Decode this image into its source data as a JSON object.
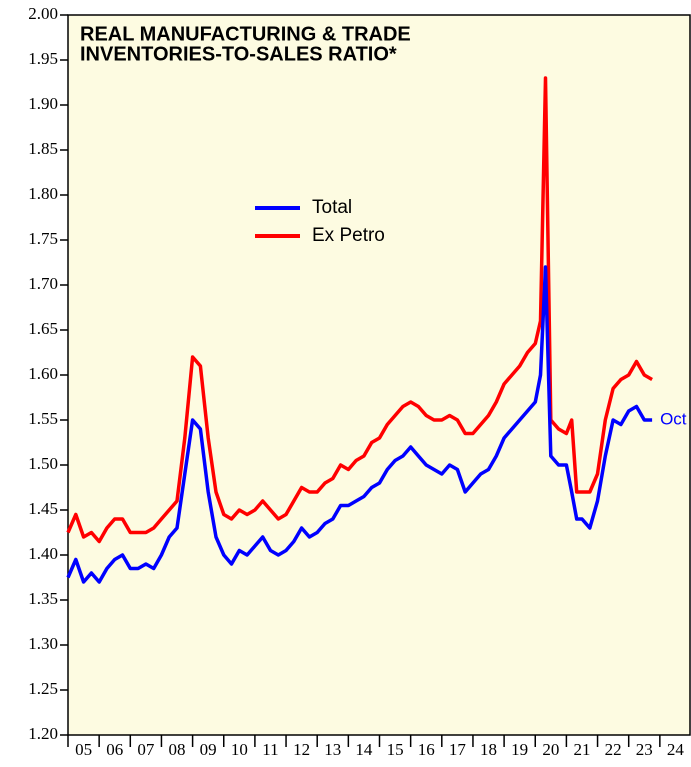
{
  "chart_data": {
    "type": "line",
    "title": [
      "REAL MANUFACTURING & TRADE",
      "INVENTORIES-TO-SALES RATIO*"
    ],
    "annotation": "Oct",
    "x": [
      2005.0,
      2005.25,
      2005.5,
      2005.75,
      2006.0,
      2006.25,
      2006.5,
      2006.75,
      2007.0,
      2007.25,
      2007.5,
      2007.75,
      2008.0,
      2008.25,
      2008.5,
      2008.75,
      2009.0,
      2009.25,
      2009.5,
      2009.75,
      2010.0,
      2010.25,
      2010.5,
      2010.75,
      2011.0,
      2011.25,
      2011.5,
      2011.75,
      2012.0,
      2012.25,
      2012.5,
      2012.75,
      2013.0,
      2013.25,
      2013.5,
      2013.75,
      2014.0,
      2014.25,
      2014.5,
      2014.75,
      2015.0,
      2015.25,
      2015.5,
      2015.75,
      2016.0,
      2016.25,
      2016.5,
      2016.75,
      2017.0,
      2017.25,
      2017.5,
      2017.75,
      2018.0,
      2018.25,
      2018.5,
      2018.75,
      2019.0,
      2019.25,
      2019.5,
      2019.75,
      2020.0,
      2020.17,
      2020.33,
      2020.5,
      2020.75,
      2021.0,
      2021.17,
      2021.33,
      2021.5,
      2021.75,
      2022.0,
      2022.25,
      2022.5,
      2022.75,
      2023.0,
      2023.25,
      2023.5,
      2023.75
    ],
    "series": [
      {
        "name": "Total",
        "color": "#0000ff",
        "values": [
          1.375,
          1.395,
          1.37,
          1.38,
          1.37,
          1.385,
          1.395,
          1.4,
          1.385,
          1.385,
          1.39,
          1.385,
          1.4,
          1.42,
          1.43,
          1.49,
          1.55,
          1.54,
          1.47,
          1.42,
          1.4,
          1.39,
          1.405,
          1.4,
          1.41,
          1.42,
          1.405,
          1.4,
          1.405,
          1.415,
          1.43,
          1.42,
          1.425,
          1.435,
          1.44,
          1.455,
          1.455,
          1.46,
          1.465,
          1.475,
          1.48,
          1.495,
          1.505,
          1.51,
          1.52,
          1.51,
          1.5,
          1.495,
          1.49,
          1.5,
          1.495,
          1.47,
          1.48,
          1.49,
          1.495,
          1.51,
          1.53,
          1.54,
          1.55,
          1.56,
          1.57,
          1.6,
          1.72,
          1.51,
          1.5,
          1.5,
          1.47,
          1.44,
          1.44,
          1.43,
          1.46,
          1.51,
          1.55,
          1.545,
          1.56,
          1.565,
          1.55,
          1.55
        ]
      },
      {
        "name": "Ex Petro",
        "color": "#ff0000",
        "values": [
          1.425,
          1.445,
          1.42,
          1.425,
          1.415,
          1.43,
          1.44,
          1.44,
          1.425,
          1.425,
          1.425,
          1.43,
          1.44,
          1.45,
          1.46,
          1.53,
          1.62,
          1.61,
          1.53,
          1.47,
          1.445,
          1.44,
          1.45,
          1.445,
          1.45,
          1.46,
          1.45,
          1.44,
          1.445,
          1.46,
          1.475,
          1.47,
          1.47,
          1.48,
          1.485,
          1.5,
          1.495,
          1.505,
          1.51,
          1.525,
          1.53,
          1.545,
          1.555,
          1.565,
          1.57,
          1.565,
          1.555,
          1.55,
          1.55,
          1.555,
          1.55,
          1.535,
          1.535,
          1.545,
          1.555,
          1.57,
          1.59,
          1.6,
          1.61,
          1.625,
          1.635,
          1.66,
          1.93,
          1.55,
          1.54,
          1.535,
          1.55,
          1.47,
          1.47,
          1.47,
          1.49,
          1.55,
          1.585,
          1.595,
          1.6,
          1.615,
          1.6,
          1.595
        ]
      }
    ],
    "xlim": [
      2005,
      2025
    ],
    "xticks": [
      {
        "value": 2005,
        "label": "05"
      },
      {
        "value": 2006,
        "label": "06"
      },
      {
        "value": 2007,
        "label": "07"
      },
      {
        "value": 2008,
        "label": "08"
      },
      {
        "value": 2009,
        "label": "09"
      },
      {
        "value": 2010,
        "label": "10"
      },
      {
        "value": 2011,
        "label": "11"
      },
      {
        "value": 2012,
        "label": "12"
      },
      {
        "value": 2013,
        "label": "13"
      },
      {
        "value": 2014,
        "label": "14"
      },
      {
        "value": 2015,
        "label": "15"
      },
      {
        "value": 2016,
        "label": "16"
      },
      {
        "value": 2017,
        "label": "17"
      },
      {
        "value": 2018,
        "label": "18"
      },
      {
        "value": 2019,
        "label": "19"
      },
      {
        "value": 2020,
        "label": "20"
      },
      {
        "value": 2021,
        "label": "21"
      },
      {
        "value": 2022,
        "label": "22"
      },
      {
        "value": 2023,
        "label": "23"
      },
      {
        "value": 2024,
        "label": "24"
      }
    ],
    "ylim": [
      1.2,
      2.0
    ],
    "yticks": [
      {
        "value": 1.2,
        "label": "1.20"
      },
      1.25,
      {
        "value": 1.3,
        "label": "1.30"
      },
      1.35,
      {
        "value": 1.4,
        "label": "1.40"
      },
      1.45,
      {
        "value": 1.5,
        "label": "1.50"
      },
      1.55,
      {
        "value": 1.6,
        "label": "1.60"
      },
      1.65,
      {
        "value": 1.7,
        "label": "1.70"
      },
      1.75,
      {
        "value": 1.8,
        "label": "1.80"
      },
      1.85,
      {
        "value": 1.9,
        "label": "1.90"
      },
      1.95,
      {
        "value": 2.0,
        "label": "2.00"
      }
    ],
    "grid": false,
    "background": "#fdfbe1"
  }
}
